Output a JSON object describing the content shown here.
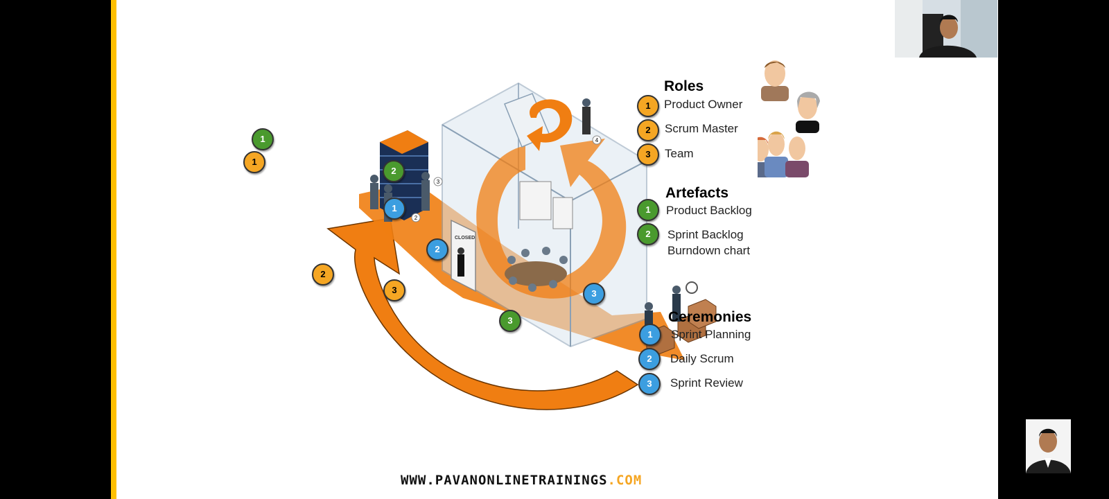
{
  "roles": {
    "title": "Roles",
    "items": [
      {
        "num": "1",
        "label": "Product Owner"
      },
      {
        "num": "2",
        "label": "Scrum Master"
      },
      {
        "num": "3",
        "label": "Team"
      }
    ]
  },
  "artefacts": {
    "title": "Artefacts",
    "items": [
      {
        "num": "1",
        "label": "Product Backlog"
      },
      {
        "num": "2",
        "label": "Sprint Backlog"
      },
      {
        "num": "",
        "label": "Burndown chart"
      }
    ]
  },
  "ceremonies": {
    "title": "Ceremonies",
    "items": [
      {
        "num": "1",
        "label": "Sprint Planning"
      },
      {
        "num": "2",
        "label": "Daily Scrum"
      },
      {
        "num": "3",
        "label": "Sprint Review"
      }
    ]
  },
  "diagram": {
    "badges": {
      "g1": "1",
      "o1": "1",
      "g2": "2",
      "b1": "1",
      "b2": "2",
      "o2": "2",
      "o3": "3",
      "g3": "3",
      "b3": "3"
    },
    "door_sign": "CLOSED",
    "small_nums": {
      "a": "2",
      "b": "3",
      "c": "4"
    }
  },
  "footer": {
    "url_main": "WWW.PAVANONLINETRAININGS",
    "url_tld": ".COM"
  },
  "colors": {
    "accent_orange": "#f5a623",
    "green": "#4a9a2e",
    "blue": "#3c9ee0",
    "side_bar": "#ffc000"
  }
}
